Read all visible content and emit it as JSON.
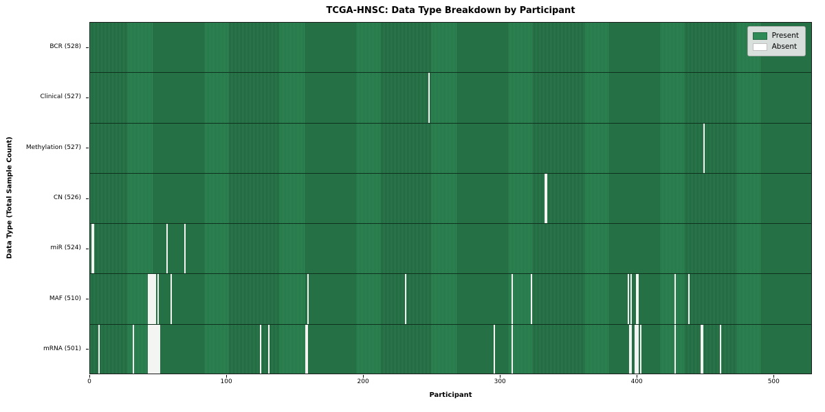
{
  "figure": {
    "title": "TCGA-HNSC: Data Type Breakdown by Participant",
    "xlabel": "Participant",
    "ylabel": "Data Type (Total Sample Count)"
  },
  "legend": {
    "entries": [
      {
        "label": "Present",
        "color": "#2e8b57"
      },
      {
        "label": "Absent",
        "color": "#ffffff"
      }
    ]
  },
  "chart_data": {
    "type": "heatmap",
    "title": "TCGA-HNSC: Data Type Breakdown by Participant",
    "xlabel": "Participant",
    "ylabel": "Data Type (Total Sample Count)",
    "x_ticks": [
      0,
      100,
      200,
      300,
      400,
      500
    ],
    "n_participants": 528,
    "xlim": [
      0,
      528
    ],
    "grid": false,
    "legend_position": "upper right",
    "colors": {
      "present_fill": "#2e8b57",
      "cell_edge": "#1d5535",
      "absent_fill": "#f4f4f2",
      "row_separator": "#10301e"
    },
    "rows": [
      {
        "label": "BCR (528)",
        "name": "BCR",
        "total": 528,
        "absent_participants": []
      },
      {
        "label": "Clinical (527)",
        "name": "Clinical",
        "total": 527,
        "absent_participants": [
          247
        ]
      },
      {
        "label": "Methylation (527)",
        "name": "Methylation",
        "total": 527,
        "absent_participants": [
          448
        ]
      },
      {
        "label": "CN (526)",
        "name": "CN",
        "total": 526,
        "absent_participants": [
          332,
          333
        ]
      },
      {
        "label": "miR (524)",
        "name": "miR",
        "total": 524,
        "absent_participants": [
          1,
          2,
          56,
          69
        ]
      },
      {
        "label": "MAF (510)",
        "name": "MAF",
        "total": 510,
        "absent_participants": [
          42,
          43,
          44,
          45,
          46,
          47,
          49,
          59,
          159,
          230,
          308,
          322,
          393,
          395,
          399,
          400,
          427,
          437
        ]
      },
      {
        "label": "mRNA (501)",
        "name": "mRNA",
        "total": 501,
        "absent_participants": [
          6,
          31,
          42,
          43,
          44,
          45,
          46,
          47,
          48,
          49,
          50,
          124,
          130,
          157,
          158,
          295,
          308,
          394,
          395,
          398,
          399,
          400,
          402,
          427,
          446,
          447,
          460
        ]
      }
    ]
  }
}
